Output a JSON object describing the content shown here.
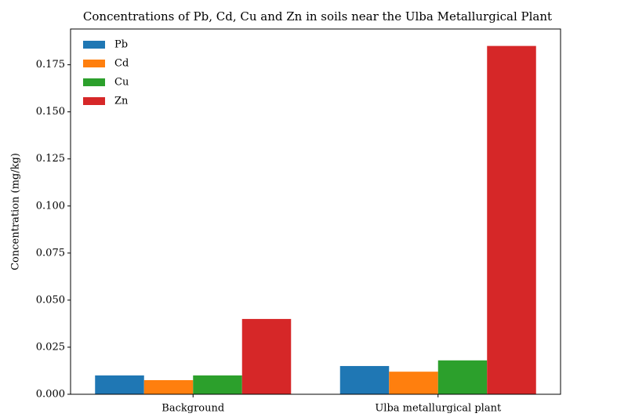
{
  "chart_data": {
    "type": "bar",
    "title": "Concentrations of Pb, Cd, Cu and Zn in soils near the Ulba Metallurgical Plant",
    "y_label": "Concentration (mg/kg)",
    "categories": [
      "Background",
      "Ulba metallurgical plant"
    ],
    "series": [
      {
        "name": "Pb",
        "color": "#1f77b4",
        "values": [
          0.01,
          0.015
        ]
      },
      {
        "name": "Cd",
        "color": "#ff7f0e",
        "values": [
          0.0075,
          0.012
        ]
      },
      {
        "name": "Cu",
        "color": "#2ca02c",
        "values": [
          0.01,
          0.018
        ]
      },
      {
        "name": "Zn",
        "color": "#d62728",
        "values": [
          0.04,
          0.185
        ]
      }
    ],
    "ylim": [
      0,
      0.194
    ],
    "yticks": [
      {
        "value": 0,
        "label": "0.000"
      },
      {
        "value": 0.025,
        "label": "0.025"
      },
      {
        "value": 0.05,
        "label": "0.050"
      },
      {
        "value": 0.075,
        "label": "0.075"
      },
      {
        "value": 0.1,
        "label": "0.100"
      },
      {
        "value": 0.125,
        "label": "0.125"
      },
      {
        "value": 0.15,
        "label": "0.150"
      },
      {
        "value": 0.175,
        "label": "0.175"
      }
    ],
    "legend": "upper left",
    "grid": false
  }
}
